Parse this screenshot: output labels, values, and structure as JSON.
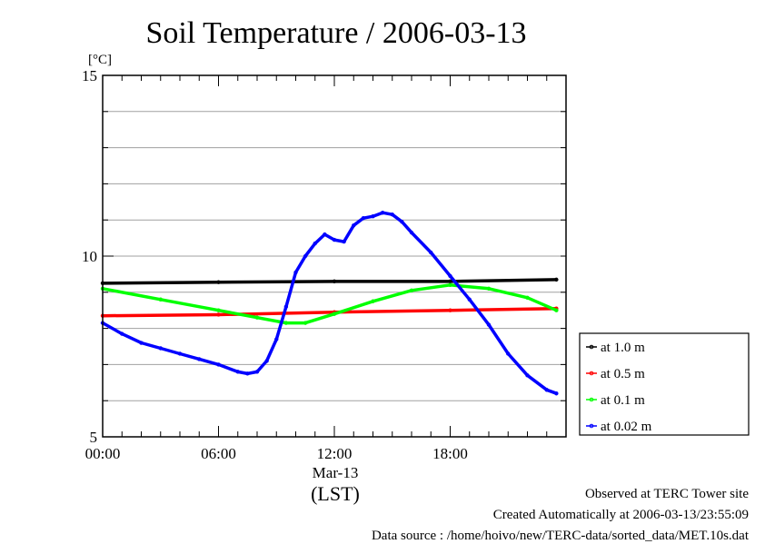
{
  "chart_data": {
    "type": "line",
    "title": "Soil Temperature / 2006-03-13",
    "ylabel": "[°C]",
    "xlabel": "(LST)",
    "date_label": "Mar-13",
    "x_ticks": [
      "00:00",
      "06:00",
      "12:00",
      "18:00"
    ],
    "y_ticks": [
      5,
      10,
      15
    ],
    "xlim": [
      0,
      24
    ],
    "ylim": [
      5,
      15
    ],
    "grid": true,
    "legend_position": "right",
    "series": [
      {
        "name": "at 1.0 m",
        "color": "#000000",
        "x": [
          0,
          6,
          12,
          18,
          23.5
        ],
        "y": [
          9.25,
          9.28,
          9.3,
          9.3,
          9.35
        ]
      },
      {
        "name": "at 0.5 m",
        "color": "#ff0000",
        "x": [
          0,
          6,
          12,
          18,
          23.5
        ],
        "y": [
          8.35,
          8.38,
          8.45,
          8.5,
          8.55
        ]
      },
      {
        "name": "at 0.1 m",
        "color": "#00ff00",
        "x": [
          0,
          3,
          6,
          8,
          9.5,
          10.5,
          12,
          14,
          16,
          18,
          20,
          22,
          23.5
        ],
        "y": [
          9.1,
          8.8,
          8.5,
          8.3,
          8.15,
          8.15,
          8.4,
          8.75,
          9.05,
          9.2,
          9.1,
          8.85,
          8.5
        ]
      },
      {
        "name": "at 0.02 m",
        "color": "#0000ff",
        "x": [
          0,
          1,
          2,
          3,
          4,
          5,
          6,
          7,
          7.5,
          8,
          8.5,
          9,
          9.5,
          10,
          10.5,
          11,
          11.5,
          12,
          12.5,
          13,
          13.5,
          14,
          14.5,
          15,
          15.5,
          16,
          17,
          18,
          19,
          20,
          21,
          22,
          23,
          23.5
        ],
        "y": [
          8.15,
          7.85,
          7.6,
          7.45,
          7.3,
          7.15,
          7.0,
          6.8,
          6.75,
          6.8,
          7.1,
          7.7,
          8.6,
          9.55,
          10.0,
          10.35,
          10.6,
          10.45,
          10.4,
          10.85,
          11.05,
          11.1,
          11.2,
          11.15,
          10.95,
          10.65,
          10.1,
          9.45,
          8.8,
          8.1,
          7.3,
          6.7,
          6.3,
          6.2
        ]
      }
    ]
  },
  "footer": {
    "site": "Observed at TERC Tower site",
    "created": "Created Automatically at 2006-03-13/23:55:09",
    "source": "Data source : /home/hoivo/new/TERC-data/sorted_data/MET.10s.dat"
  }
}
